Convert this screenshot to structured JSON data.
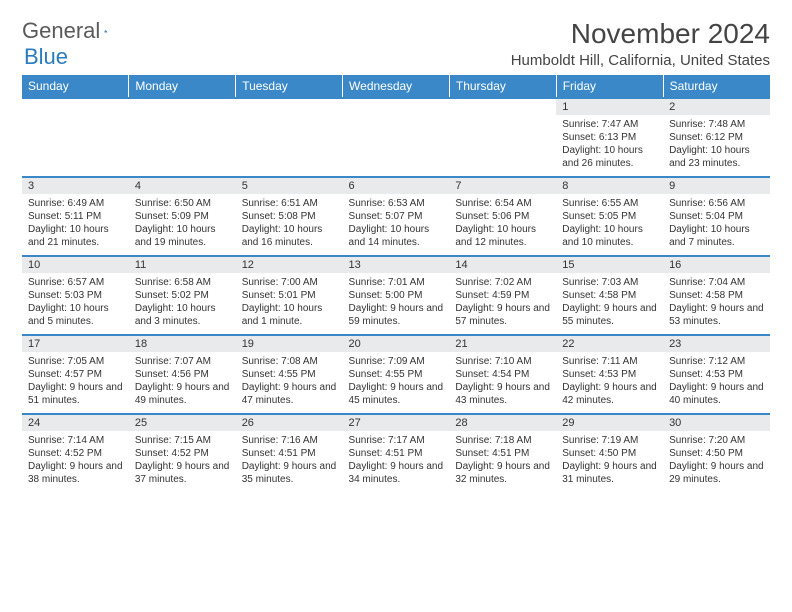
{
  "logo": {
    "general": "General",
    "blue": "Blue"
  },
  "title": "November 2024",
  "location": "Humboldt Hill, California, United States",
  "colors": {
    "header_bg": "#3b88c9",
    "header_text": "#ffffff",
    "daynum_bg": "#e9eaeb",
    "border": "#3b88c9",
    "text": "#333333",
    "logo_gray": "#5a5a5a",
    "logo_blue": "#2b7bbf"
  },
  "day_headers": [
    "Sunday",
    "Monday",
    "Tuesday",
    "Wednesday",
    "Thursday",
    "Friday",
    "Saturday"
  ],
  "weeks": [
    [
      null,
      null,
      null,
      null,
      null,
      {
        "n": "1",
        "sr": "Sunrise: 7:47 AM",
        "ss": "Sunset: 6:13 PM",
        "dl": "Daylight: 10 hours and 26 minutes."
      },
      {
        "n": "2",
        "sr": "Sunrise: 7:48 AM",
        "ss": "Sunset: 6:12 PM",
        "dl": "Daylight: 10 hours and 23 minutes."
      }
    ],
    [
      {
        "n": "3",
        "sr": "Sunrise: 6:49 AM",
        "ss": "Sunset: 5:11 PM",
        "dl": "Daylight: 10 hours and 21 minutes."
      },
      {
        "n": "4",
        "sr": "Sunrise: 6:50 AM",
        "ss": "Sunset: 5:09 PM",
        "dl": "Daylight: 10 hours and 19 minutes."
      },
      {
        "n": "5",
        "sr": "Sunrise: 6:51 AM",
        "ss": "Sunset: 5:08 PM",
        "dl": "Daylight: 10 hours and 16 minutes."
      },
      {
        "n": "6",
        "sr": "Sunrise: 6:53 AM",
        "ss": "Sunset: 5:07 PM",
        "dl": "Daylight: 10 hours and 14 minutes."
      },
      {
        "n": "7",
        "sr": "Sunrise: 6:54 AM",
        "ss": "Sunset: 5:06 PM",
        "dl": "Daylight: 10 hours and 12 minutes."
      },
      {
        "n": "8",
        "sr": "Sunrise: 6:55 AM",
        "ss": "Sunset: 5:05 PM",
        "dl": "Daylight: 10 hours and 10 minutes."
      },
      {
        "n": "9",
        "sr": "Sunrise: 6:56 AM",
        "ss": "Sunset: 5:04 PM",
        "dl": "Daylight: 10 hours and 7 minutes."
      }
    ],
    [
      {
        "n": "10",
        "sr": "Sunrise: 6:57 AM",
        "ss": "Sunset: 5:03 PM",
        "dl": "Daylight: 10 hours and 5 minutes."
      },
      {
        "n": "11",
        "sr": "Sunrise: 6:58 AM",
        "ss": "Sunset: 5:02 PM",
        "dl": "Daylight: 10 hours and 3 minutes."
      },
      {
        "n": "12",
        "sr": "Sunrise: 7:00 AM",
        "ss": "Sunset: 5:01 PM",
        "dl": "Daylight: 10 hours and 1 minute."
      },
      {
        "n": "13",
        "sr": "Sunrise: 7:01 AM",
        "ss": "Sunset: 5:00 PM",
        "dl": "Daylight: 9 hours and 59 minutes."
      },
      {
        "n": "14",
        "sr": "Sunrise: 7:02 AM",
        "ss": "Sunset: 4:59 PM",
        "dl": "Daylight: 9 hours and 57 minutes."
      },
      {
        "n": "15",
        "sr": "Sunrise: 7:03 AM",
        "ss": "Sunset: 4:58 PM",
        "dl": "Daylight: 9 hours and 55 minutes."
      },
      {
        "n": "16",
        "sr": "Sunrise: 7:04 AM",
        "ss": "Sunset: 4:58 PM",
        "dl": "Daylight: 9 hours and 53 minutes."
      }
    ],
    [
      {
        "n": "17",
        "sr": "Sunrise: 7:05 AM",
        "ss": "Sunset: 4:57 PM",
        "dl": "Daylight: 9 hours and 51 minutes."
      },
      {
        "n": "18",
        "sr": "Sunrise: 7:07 AM",
        "ss": "Sunset: 4:56 PM",
        "dl": "Daylight: 9 hours and 49 minutes."
      },
      {
        "n": "19",
        "sr": "Sunrise: 7:08 AM",
        "ss": "Sunset: 4:55 PM",
        "dl": "Daylight: 9 hours and 47 minutes."
      },
      {
        "n": "20",
        "sr": "Sunrise: 7:09 AM",
        "ss": "Sunset: 4:55 PM",
        "dl": "Daylight: 9 hours and 45 minutes."
      },
      {
        "n": "21",
        "sr": "Sunrise: 7:10 AM",
        "ss": "Sunset: 4:54 PM",
        "dl": "Daylight: 9 hours and 43 minutes."
      },
      {
        "n": "22",
        "sr": "Sunrise: 7:11 AM",
        "ss": "Sunset: 4:53 PM",
        "dl": "Daylight: 9 hours and 42 minutes."
      },
      {
        "n": "23",
        "sr": "Sunrise: 7:12 AM",
        "ss": "Sunset: 4:53 PM",
        "dl": "Daylight: 9 hours and 40 minutes."
      }
    ],
    [
      {
        "n": "24",
        "sr": "Sunrise: 7:14 AM",
        "ss": "Sunset: 4:52 PM",
        "dl": "Daylight: 9 hours and 38 minutes."
      },
      {
        "n": "25",
        "sr": "Sunrise: 7:15 AM",
        "ss": "Sunset: 4:52 PM",
        "dl": "Daylight: 9 hours and 37 minutes."
      },
      {
        "n": "26",
        "sr": "Sunrise: 7:16 AM",
        "ss": "Sunset: 4:51 PM",
        "dl": "Daylight: 9 hours and 35 minutes."
      },
      {
        "n": "27",
        "sr": "Sunrise: 7:17 AM",
        "ss": "Sunset: 4:51 PM",
        "dl": "Daylight: 9 hours and 34 minutes."
      },
      {
        "n": "28",
        "sr": "Sunrise: 7:18 AM",
        "ss": "Sunset: 4:51 PM",
        "dl": "Daylight: 9 hours and 32 minutes."
      },
      {
        "n": "29",
        "sr": "Sunrise: 7:19 AM",
        "ss": "Sunset: 4:50 PM",
        "dl": "Daylight: 9 hours and 31 minutes."
      },
      {
        "n": "30",
        "sr": "Sunrise: 7:20 AM",
        "ss": "Sunset: 4:50 PM",
        "dl": "Daylight: 9 hours and 29 minutes."
      }
    ]
  ]
}
